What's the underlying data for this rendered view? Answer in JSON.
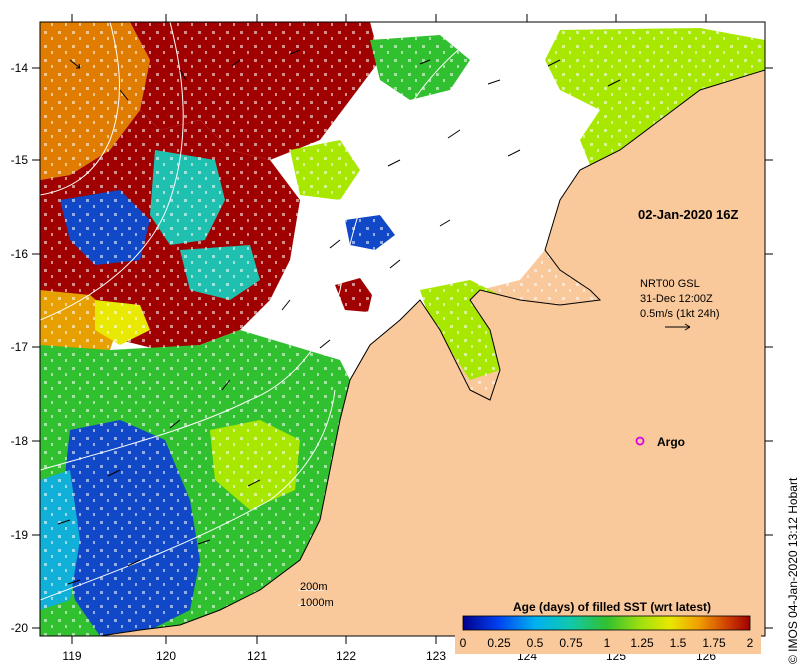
{
  "map": {
    "timestamp_label": "02-Jan-2020 16Z",
    "x_ticks": [
      "119",
      "120",
      "121",
      "122",
      "123",
      "124",
      "125",
      "126"
    ],
    "y_ticks": [
      "-14",
      "-15",
      "-16",
      "-17",
      "-18",
      "-19",
      "-20"
    ],
    "wind": {
      "product": "NRT00 GSL",
      "time": "31-Dec 12:00Z",
      "scale": "0.5m/s (1kt 24h)"
    },
    "argo": {
      "label": "Argo",
      "marker_color": "#e000e0"
    },
    "contours": {
      "shallow": "200m",
      "deep": "1000m"
    },
    "colorbar": {
      "title": "Age (days) of filled SST (wrt latest)",
      "ticks": [
        "0",
        "0.25",
        "0.5",
        "0.75",
        "1",
        "1.25",
        "1.5",
        "1.75",
        "2"
      ],
      "colors": [
        "#00008c",
        "#0000c8",
        "#0040f0",
        "#0080f0",
        "#00c0e0",
        "#10c8b8",
        "#20c880",
        "#30c040",
        "#50c820",
        "#80d010",
        "#b0e010",
        "#e0e000",
        "#f0c000",
        "#f09000",
        "#e06000",
        "#c02000",
        "#a00000"
      ]
    },
    "copyright": "© IMOS 04-Jan-2020 13:12 Hobart",
    "colors": {
      "land": "#f9c89b",
      "maroon": "#a00000",
      "orange": "#e07c00",
      "teal": "#20c0b0",
      "blue": "#1048c8",
      "green": "#30c030",
      "lime": "#a8e800",
      "yellow": "#e8e800"
    }
  }
}
